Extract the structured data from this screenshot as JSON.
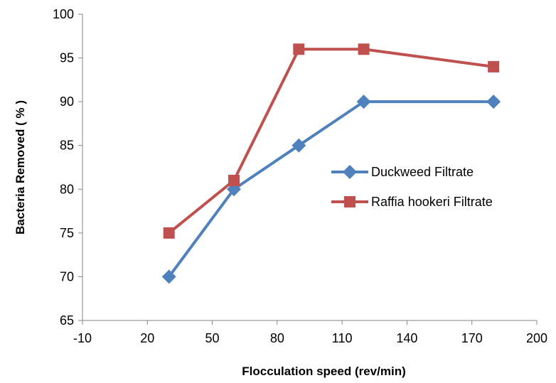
{
  "chart_data": {
    "type": "line",
    "xlabel": "Flocculation speed (rev/min)",
    "ylabel": "Bacteria Removed ( % )",
    "xlim": [
      -10,
      200
    ],
    "ylim": [
      65,
      100
    ],
    "xticks": [
      "-10",
      "20",
      "50",
      "80",
      "110",
      "140",
      "170",
      "200"
    ],
    "yticks": [
      "65",
      "70",
      "75",
      "80",
      "85",
      "90",
      "95",
      "100"
    ],
    "grid": false,
    "legend_position": "right",
    "series": [
      {
        "name": "Duckweed Filtrate",
        "color": "#4f81bd",
        "marker": "diamond",
        "x": [
          30,
          60,
          90,
          120,
          180
        ],
        "values": [
          70,
          80,
          85,
          90,
          90
        ]
      },
      {
        "name": "Raffia hookeri Filtrate",
        "color": "#c0504d",
        "marker": "square",
        "x": [
          30,
          60,
          90,
          120,
          180
        ],
        "values": [
          75,
          81,
          96,
          96,
          94
        ]
      }
    ]
  }
}
